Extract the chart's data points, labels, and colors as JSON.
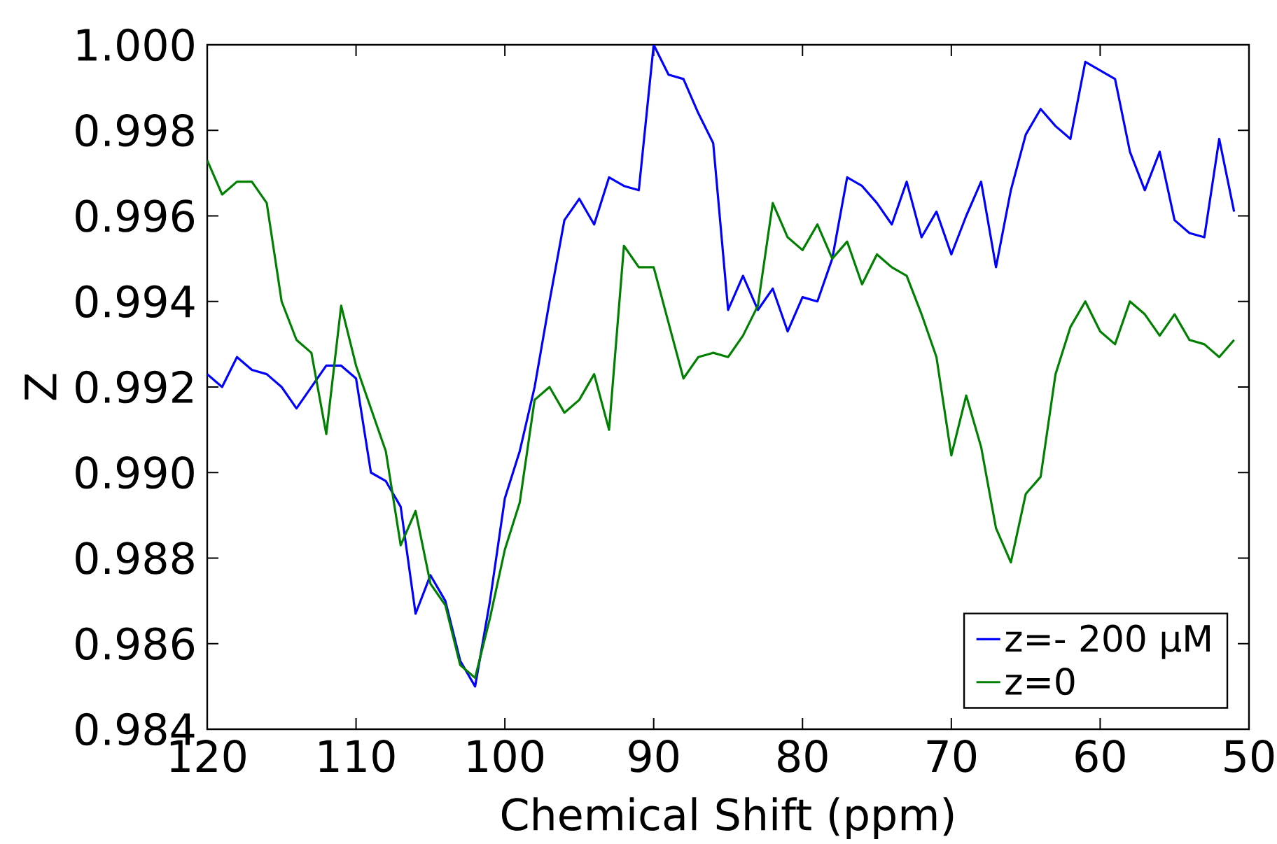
{
  "chart_data": {
    "type": "line",
    "xlabel": "Chemical Shift (ppm)",
    "ylabel": "Z",
    "x": [
      120,
      119,
      118,
      117,
      116,
      115,
      114,
      113,
      112,
      111,
      110,
      109,
      108,
      107,
      106,
      105,
      104,
      103,
      102,
      101,
      100,
      99,
      98,
      97,
      96,
      95,
      94,
      93,
      92,
      91,
      90,
      89,
      88,
      87,
      86,
      85,
      84,
      83,
      82,
      81,
      80,
      79,
      78,
      77,
      76,
      75,
      74,
      73,
      72,
      71,
      70,
      69,
      68,
      67,
      66,
      65,
      64,
      63,
      62,
      61,
      60,
      59,
      58,
      57,
      56,
      55,
      54,
      53,
      52,
      51
    ],
    "series": [
      {
        "name": "z=- 200 μM",
        "color": "#0000ff",
        "values": [
          0.9923,
          0.992,
          0.9927,
          0.9924,
          0.9923,
          0.992,
          0.9915,
          0.992,
          0.9925,
          0.9925,
          0.9922,
          0.99,
          0.9898,
          0.9892,
          0.9867,
          0.9876,
          0.987,
          0.9856,
          0.985,
          0.987,
          0.9894,
          0.9905,
          0.992,
          0.994,
          0.9959,
          0.9964,
          0.9958,
          0.9969,
          0.9967,
          0.9966,
          1.0,
          0.9993,
          0.9992,
          0.9984,
          0.9977,
          0.9938,
          0.9946,
          0.9938,
          0.9943,
          0.9933,
          0.9941,
          0.994,
          0.995,
          0.9969,
          0.9967,
          0.9963,
          0.9958,
          0.9968,
          0.9955,
          0.9961,
          0.9951,
          0.996,
          0.9968,
          0.9948,
          0.9966,
          0.9979,
          0.9985,
          0.9981,
          0.9978,
          0.9996,
          0.9994,
          0.9992,
          0.9975,
          0.9966,
          0.9975,
          0.9959,
          0.9956,
          0.9955,
          0.9978,
          0.9961
        ]
      },
      {
        "name": "z=0",
        "color": "#008000",
        "values": [
          0.9973,
          0.9965,
          0.9968,
          0.9968,
          0.9963,
          0.994,
          0.9931,
          0.9928,
          0.9909,
          0.9939,
          0.9925,
          0.9915,
          0.9905,
          0.9883,
          0.9891,
          0.9874,
          0.9869,
          0.9855,
          0.9852,
          0.9866,
          0.9882,
          0.9893,
          0.9917,
          0.992,
          0.9914,
          0.9917,
          0.9923,
          0.991,
          0.9953,
          0.9948,
          0.9948,
          0.9935,
          0.9922,
          0.9927,
          0.9928,
          0.9927,
          0.9932,
          0.9939,
          0.9963,
          0.9955,
          0.9952,
          0.9958,
          0.995,
          0.9954,
          0.9944,
          0.9951,
          0.9948,
          0.9946,
          0.9937,
          0.9927,
          0.9904,
          0.9918,
          0.9906,
          0.9887,
          0.9879,
          0.9895,
          0.9899,
          0.9923,
          0.9934,
          0.994,
          0.9933,
          0.993,
          0.994,
          0.9937,
          0.9932,
          0.9937,
          0.9931,
          0.993,
          0.9927,
          0.9931
        ]
      }
    ],
    "xlim": [
      120,
      50
    ],
    "ylim": [
      0.984,
      1.0
    ],
    "xticks": [
      120,
      110,
      100,
      90,
      80,
      70,
      60,
      50
    ],
    "yticks": [
      {
        "value": 0.984,
        "label": "0.984"
      },
      {
        "value": 0.986,
        "label": "0.986"
      },
      {
        "value": 0.988,
        "label": "0.988"
      },
      {
        "value": 0.99,
        "label": "0.990"
      },
      {
        "value": 0.992,
        "label": "0.992"
      },
      {
        "value": 0.994,
        "label": "0.994"
      },
      {
        "value": 0.996,
        "label": "0.996"
      },
      {
        "value": 0.998,
        "label": "0.998"
      },
      {
        "value": 1.0,
        "label": "1.000"
      }
    ],
    "legend": "bottom right",
    "grid": false,
    "marker": "none",
    "line_style": "solid"
  }
}
